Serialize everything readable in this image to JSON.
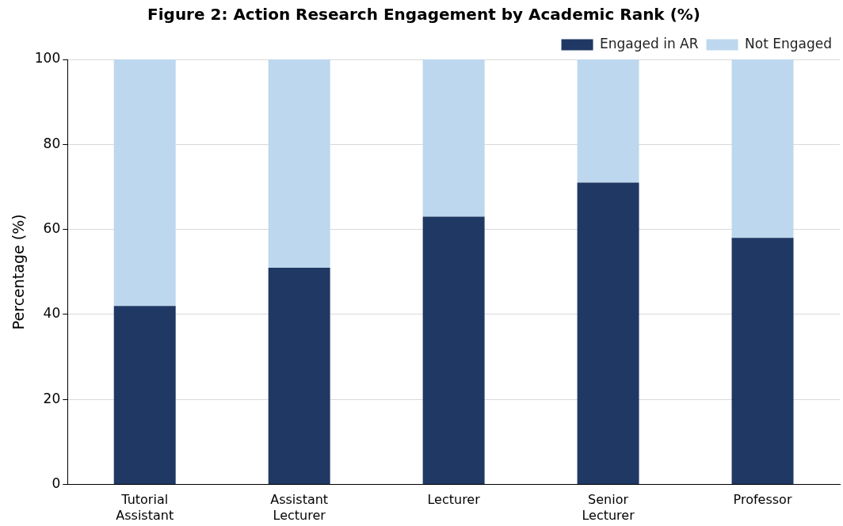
{
  "chart_data": {
    "type": "bar",
    "title": "Figure 2: Action Research Engagement by Academic Rank (%)",
    "ylabel": "Percentage (%)",
    "categories": [
      "Tutorial Assistant",
      "Assistant Lecturer",
      "Lecturer",
      "Senior Lecturer",
      "Professor"
    ],
    "series": [
      {
        "name": "Engaged in AR",
        "color": "#203864",
        "values": [
          42,
          51,
          63,
          71,
          58
        ]
      },
      {
        "name": "Not Engaged",
        "color": "#bdd7ee",
        "values": [
          58,
          49,
          37,
          29,
          42
        ]
      }
    ],
    "stacked": true,
    "ylim": [
      0,
      100
    ],
    "yticks": [
      0,
      20,
      40,
      60,
      80,
      100
    ],
    "grid": "y",
    "legend": "top right"
  }
}
